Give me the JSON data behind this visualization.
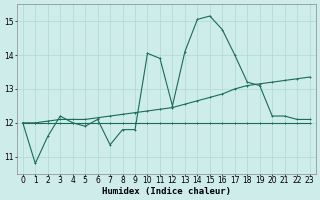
{
  "xlabel": "Humidex (Indice chaleur)",
  "bg_color": "#ceecea",
  "grid_color": "#aed8d4",
  "line_color": "#1a6b5a",
  "xlim": [
    -0.5,
    23.5
  ],
  "ylim": [
    10.5,
    15.5
  ],
  "yticks": [
    11,
    12,
    13,
    14,
    15
  ],
  "xticks": [
    0,
    1,
    2,
    3,
    4,
    5,
    6,
    7,
    8,
    9,
    10,
    11,
    12,
    13,
    14,
    15,
    16,
    17,
    18,
    19,
    20,
    21,
    22,
    23
  ],
  "series1_x": [
    0,
    1,
    2,
    3,
    4,
    5,
    6,
    7,
    8,
    9,
    10,
    11,
    12,
    13,
    14,
    15,
    16,
    17,
    18,
    19,
    20,
    21,
    22,
    23
  ],
  "series1_y": [
    12.0,
    10.8,
    11.6,
    12.2,
    12.0,
    11.9,
    12.1,
    11.35,
    11.8,
    11.8,
    14.05,
    13.9,
    12.5,
    14.1,
    15.05,
    15.15,
    14.75,
    14.0,
    13.2,
    13.1,
    12.2,
    12.2,
    12.1,
    12.1
  ],
  "series2_x": [
    0,
    1,
    2,
    3,
    4,
    5,
    6,
    7,
    8,
    9,
    10,
    11,
    12,
    13,
    14,
    15,
    16,
    17,
    18,
    19,
    20,
    21,
    22,
    23
  ],
  "series2_y": [
    12.0,
    12.0,
    12.05,
    12.1,
    12.1,
    12.1,
    12.15,
    12.2,
    12.25,
    12.3,
    12.35,
    12.4,
    12.45,
    12.55,
    12.65,
    12.75,
    12.85,
    13.0,
    13.1,
    13.15,
    13.2,
    13.25,
    13.3,
    13.35
  ],
  "series3_x": [
    0,
    1,
    2,
    3,
    4,
    5,
    6,
    7,
    8,
    9,
    10,
    11,
    12,
    13,
    14,
    15,
    16,
    17,
    18,
    19,
    20,
    21,
    22,
    23
  ],
  "series3_y": [
    12.0,
    12.0,
    12.0,
    12.0,
    12.0,
    12.0,
    12.0,
    12.0,
    12.0,
    12.0,
    12.0,
    12.0,
    12.0,
    12.0,
    12.0,
    12.0,
    12.0,
    12.0,
    12.0,
    12.0,
    12.0,
    12.0,
    12.0,
    12.0
  ],
  "font_size": 6.5,
  "tick_font_size": 5.5
}
